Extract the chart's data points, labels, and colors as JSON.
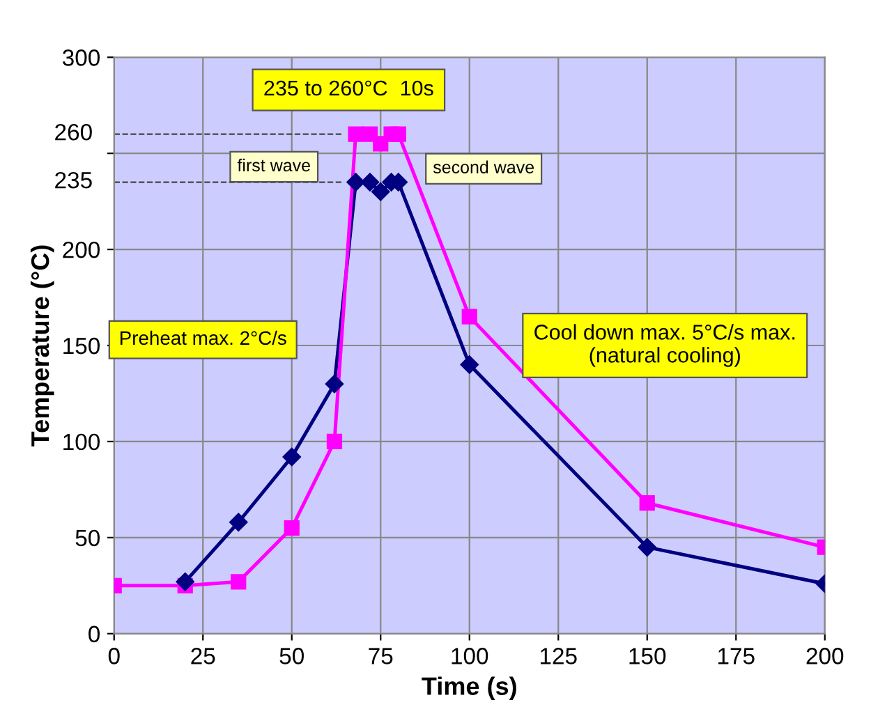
{
  "chart_data": {
    "type": "line",
    "xlabel": "Time (s)",
    "ylabel": "Temperature (°C)",
    "xlim": [
      0,
      200
    ],
    "xticks": [
      0,
      25,
      50,
      75,
      100,
      125,
      150,
      175,
      200
    ],
    "ylim": [
      0,
      300
    ],
    "yticks": [
      0,
      50,
      100,
      150,
      200,
      {
        "value": 250,
        "label": null
      },
      300
    ],
    "ref_lines": [
      {
        "axis": "y",
        "value": 260,
        "label": "260",
        "line_style": "dashed",
        "color": "#444444"
      },
      {
        "axis": "y",
        "value": 235,
        "label": "235",
        "line_style": "dashed",
        "color": "#444444"
      }
    ],
    "grid": true,
    "legend": false,
    "line_style": "solid",
    "series": [
      {
        "color": "#000080",
        "marker": "diamond",
        "x": [
          20,
          35,
          50,
          62,
          68,
          72,
          75,
          78,
          80,
          100,
          150,
          200
        ],
        "values": [
          27,
          58,
          92,
          130,
          235,
          235,
          230,
          235,
          235,
          140,
          45,
          26
        ]
      },
      {
        "color": "#ff00ff",
        "marker": "square",
        "x": [
          0,
          20,
          35,
          50,
          62,
          68,
          72,
          75,
          78,
          80,
          100,
          150,
          200
        ],
        "values": [
          25,
          25,
          27,
          55,
          100,
          260,
          260,
          255,
          260,
          260,
          165,
          68,
          45
        ]
      }
    ],
    "annotations": [
      "235 to 260°C  10s",
      "first wave",
      "second wave",
      "Preheat max. 2°C/s",
      "Cool down max. 5°C/s max.\n(natural cooling)"
    ]
  }
}
